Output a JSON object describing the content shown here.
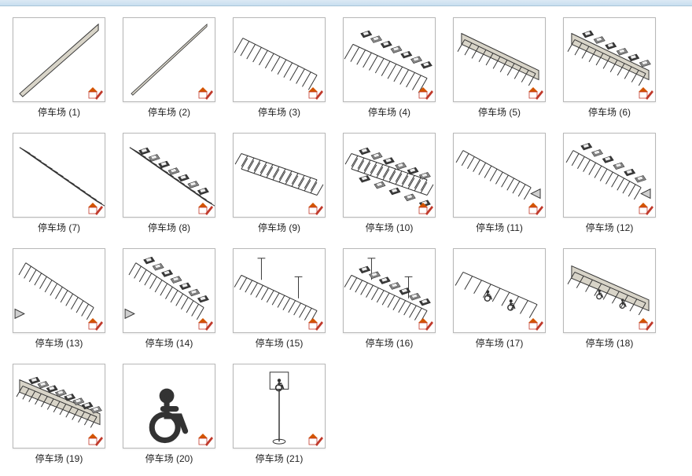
{
  "window": {
    "header_bg_top": "#dbe9f4",
    "header_bg_bottom": "#c8dff0"
  },
  "thumbnail_style": {
    "border_color": "#b8b8b8",
    "bg": "#ffffff",
    "width": 118,
    "height": 108,
    "label_color": "#222222",
    "label_fontsize": 12
  },
  "badge": {
    "house_fill": "#ffffff",
    "house_stroke": "#c0392b",
    "roof_fill": "#d35400",
    "pencil_fill": "#c0392b"
  },
  "items": [
    {
      "label": "停车场 (1)",
      "kind": "curb-long"
    },
    {
      "label": "停车场 (2)",
      "kind": "curb-thin"
    },
    {
      "label": "停车场 (3)",
      "kind": "lot-empty"
    },
    {
      "label": "停车场 (4)",
      "kind": "lot-cars"
    },
    {
      "label": "停车场 (5)",
      "kind": "lot-edge"
    },
    {
      "label": "停车场 (6)",
      "kind": "lot-edge-cars"
    },
    {
      "label": "停车场 (7)",
      "kind": "lot-angled"
    },
    {
      "label": "停车场 (8)",
      "kind": "lot-angled-cars"
    },
    {
      "label": "停车场 (9)",
      "kind": "lot-double"
    },
    {
      "label": "停车场 (10)",
      "kind": "lot-double-cars"
    },
    {
      "label": "停车场 (11)",
      "kind": "lot-arrow"
    },
    {
      "label": "停车场 (12)",
      "kind": "lot-arrow-cars"
    },
    {
      "label": "停车场 (13)",
      "kind": "lot-arrow2"
    },
    {
      "label": "停车场 (14)",
      "kind": "lot-arrow2-cars"
    },
    {
      "label": "停车场 (15)",
      "kind": "lot-poles"
    },
    {
      "label": "停车场 (16)",
      "kind": "lot-poles-cars"
    },
    {
      "label": "停车场 (17)",
      "kind": "lot-wheelchair"
    },
    {
      "label": "停车场 (18)",
      "kind": "lot-wheelchair-edge"
    },
    {
      "label": "停车场 (19)",
      "kind": "lot-dense"
    },
    {
      "label": "停车场 (20)",
      "kind": "wheelchair-symbol"
    },
    {
      "label": "停车场 (21)",
      "kind": "sign-pole"
    }
  ],
  "art": {
    "line_color": "#333333",
    "fill_gray": "#cfcfcf",
    "curb_fill": "#d8d4c8",
    "car_dark": "#3a3a3a",
    "car_light": "#8a8a8a"
  }
}
